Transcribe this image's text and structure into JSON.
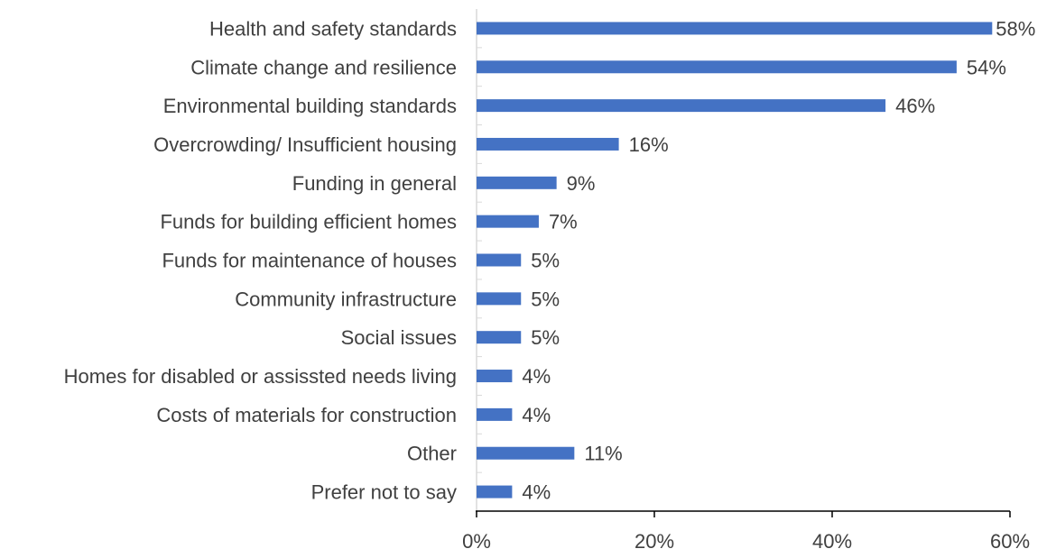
{
  "chart_data": {
    "type": "bar",
    "orientation": "horizontal",
    "categories": [
      "Health and safety standards",
      "Climate change and resilience",
      "Environmental building standards",
      "Overcrowding/ Insufficient housing",
      "Funding in general",
      "Funds for building efficient homes",
      "Funds for maintenance of houses",
      "Community infrastructure",
      "Social issues",
      "Homes for disabled or assissted needs living",
      "Costs of materials for construction",
      "Other",
      "Prefer not to say"
    ],
    "values": [
      58,
      54,
      46,
      16,
      9,
      7,
      5,
      5,
      5,
      4,
      4,
      11,
      4
    ],
    "data_labels": [
      "58%",
      "54%",
      "46%",
      "16%",
      "9%",
      "7%",
      "5%",
      "5%",
      "5%",
      "4%",
      "4%",
      "11%",
      "4%"
    ],
    "x_ticks": [
      0,
      20,
      40,
      60
    ],
    "x_tick_labels": [
      "0%",
      "20%",
      "40%",
      "60%"
    ],
    "xlim": [
      0,
      60
    ],
    "title": "",
    "xlabel": "",
    "ylabel": "",
    "grid": false,
    "legend": "none",
    "bar_color": "#4472C4"
  }
}
